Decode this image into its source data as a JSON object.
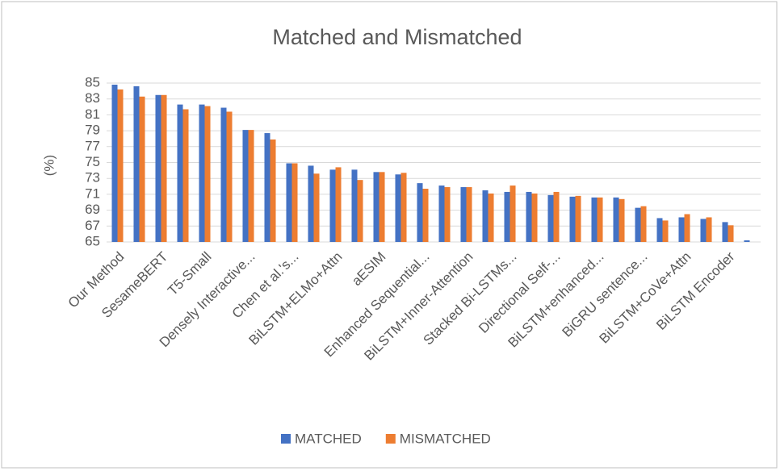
{
  "chart_data": {
    "type": "bar",
    "title": "Matched and Mismatched",
    "y_label": "(%)",
    "categories": [
      "Our Method",
      null,
      "SesameBERT",
      null,
      "T5-Small",
      null,
      "Densely Interactive...",
      null,
      "Chen et al.'s...",
      null,
      "BiLSTM+ELMo+Attn",
      null,
      "aESIM",
      null,
      "Enhanced Sequential...",
      null,
      "BiLSTM+Inner-Attention",
      null,
      "Stacked Bi-LSTMs...",
      null,
      "Directional Self-...",
      null,
      "BiLSTM+enhanced...",
      null,
      "BiGRU sentence...",
      null,
      "BiLSTM+CoVe+Attn",
      null,
      "BiLSTM Encoder",
      null
    ],
    "series": [
      {
        "name": "MATCHED",
        "color": "#4472c4",
        "values": [
          84.8,
          84.6,
          83.5,
          82.3,
          82.3,
          81.9,
          79.1,
          78.7,
          74.9,
          74.6,
          74.1,
          74.1,
          73.8,
          73.5,
          72.4,
          72.1,
          71.9,
          71.5,
          71.3,
          71.3,
          70.9,
          70.7,
          70.6,
          70.6,
          69.3,
          68.0,
          68.1,
          67.9,
          67.5,
          65.2
        ]
      },
      {
        "name": "MISMATCHED",
        "color": "#ed7d31",
        "values": [
          84.2,
          83.3,
          83.5,
          81.7,
          82.1,
          81.4,
          79.1,
          77.9,
          74.9,
          73.6,
          74.4,
          72.8,
          73.8,
          73.7,
          71.7,
          71.9,
          71.9,
          71.1,
          72.1,
          71.1,
          71.3,
          70.8,
          70.6,
          70.4,
          69.5,
          67.7,
          68.5,
          68.1,
          67.1,
          null
        ]
      }
    ],
    "ylim": [
      65,
      85
    ],
    "yticks": [
      65,
      67,
      69,
      71,
      73,
      75,
      77,
      79,
      81,
      83,
      85
    ],
    "grid": true,
    "legend": "bottom"
  }
}
